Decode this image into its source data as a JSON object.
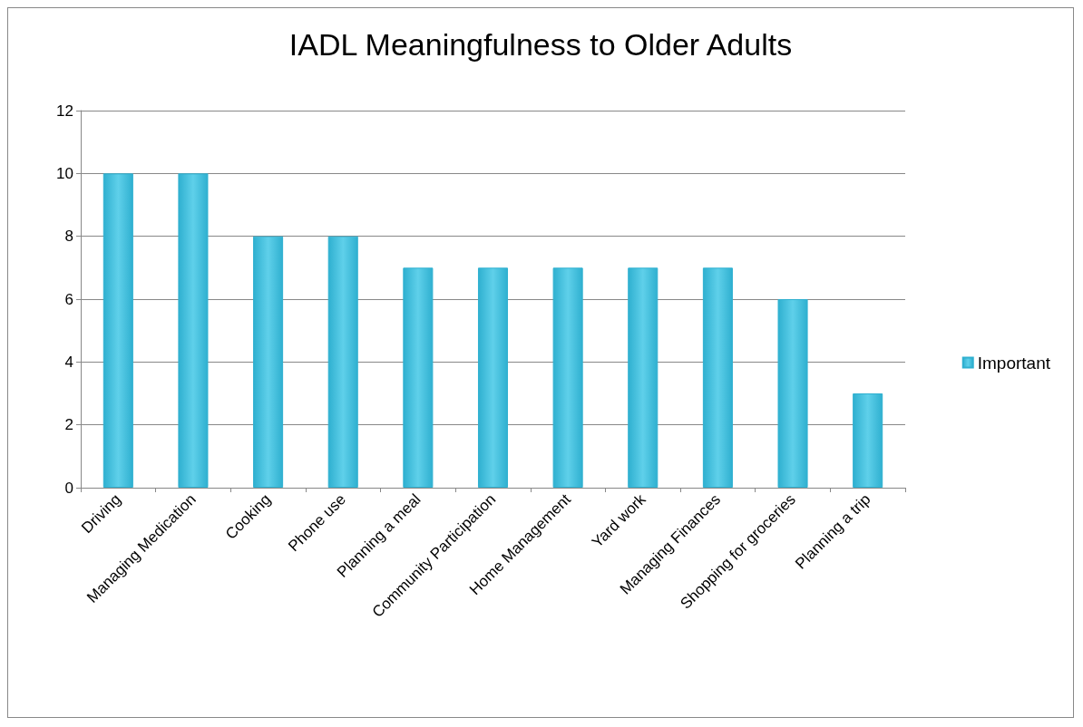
{
  "chart_data": {
    "type": "bar",
    "title": "IADL Meaningfulness to Older Adults",
    "categories": [
      "Driving",
      "Managing Medication",
      "Cooking",
      "Phone use",
      "Planning a meal",
      "Community Participation",
      "Home Management",
      "Yard work",
      "Managing Finances",
      "Shopping for groceries",
      "Planning a trip"
    ],
    "series": [
      {
        "name": "Important",
        "color": "#2fb0d0",
        "values": [
          10,
          10,
          8,
          8,
          7,
          7,
          7,
          7,
          7,
          6,
          3
        ]
      }
    ],
    "ylim": [
      0,
      12
    ],
    "yticks": [
      0,
      2,
      4,
      6,
      8,
      10,
      12
    ],
    "grid": "y",
    "legend": "right"
  }
}
